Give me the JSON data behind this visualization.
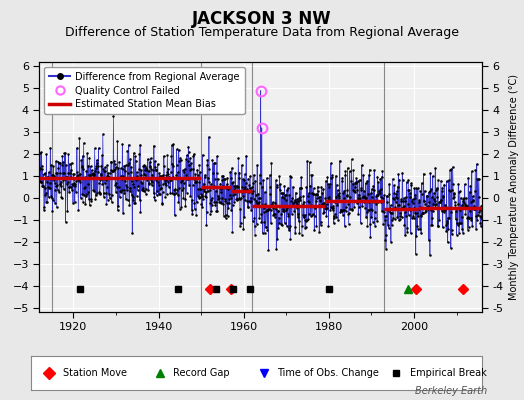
{
  "title": "JACKSON 3 NW",
  "subtitle": "Difference of Station Temperature Data from Regional Average",
  "ylabel": "Monthly Temperature Anomaly Difference (°C)",
  "xlim": [
    1912,
    2016
  ],
  "ylim_main": [
    -5.2,
    6.2
  ],
  "background_color": "#e8e8e8",
  "plot_bg_color": "#f0f0f0",
  "title_fontsize": 12,
  "subtitle_fontsize": 9,
  "watermark": "Berkeley Earth",
  "seed": 42,
  "segments": [
    {
      "start": 1912,
      "end": 1950,
      "mean": 0.9,
      "trend": -0.003
    },
    {
      "start": 1950,
      "end": 1957,
      "mean": 0.5,
      "trend": -0.01
    },
    {
      "start": 1957,
      "end": 1962,
      "mean": 0.3,
      "trend": -0.02
    },
    {
      "start": 1962,
      "end": 1979,
      "mean": -0.35,
      "trend": 0.004
    },
    {
      "start": 1979,
      "end": 1993,
      "mean": -0.15,
      "trend": 0.003
    },
    {
      "start": 1993,
      "end": 2001,
      "mean": -0.5,
      "trend": 0.01
    },
    {
      "start": 2001,
      "end": 2016,
      "mean": -0.45,
      "trend": 0.005
    }
  ],
  "bias_segments": [
    {
      "start": 1912,
      "end": 1950,
      "value": 0.9
    },
    {
      "start": 1950,
      "end": 1957,
      "value": 0.5
    },
    {
      "start": 1957,
      "end": 1962,
      "value": 0.3
    },
    {
      "start": 1962,
      "end": 1979,
      "value": -0.35
    },
    {
      "start": 1979,
      "end": 1993,
      "value": -0.15
    },
    {
      "start": 1993,
      "end": 2001,
      "value": -0.5
    },
    {
      "start": 2001,
      "end": 2016,
      "value": -0.45
    }
  ],
  "qc_failed": [
    {
      "year": 1964.0,
      "value": 4.9
    },
    {
      "year": 1964.25,
      "value": 3.2
    }
  ],
  "station_moves": [
    1952.0,
    1957.0,
    2000.5,
    2011.5
  ],
  "record_gaps": [
    1998.5
  ],
  "obs_changes": [],
  "empirical_breaks": [
    1921.5,
    1944.5,
    1953.5,
    1957.5,
    1961.5,
    1980.0
  ],
  "vert_lines": [
    1915,
    1950,
    1962,
    1993
  ],
  "grid_color": "#ffffff",
  "line_color": "#3333cc",
  "bias_color": "#cc0000",
  "marker_color": "#000000",
  "qc_color": "#ff66ff",
  "marker_y": -4.15
}
